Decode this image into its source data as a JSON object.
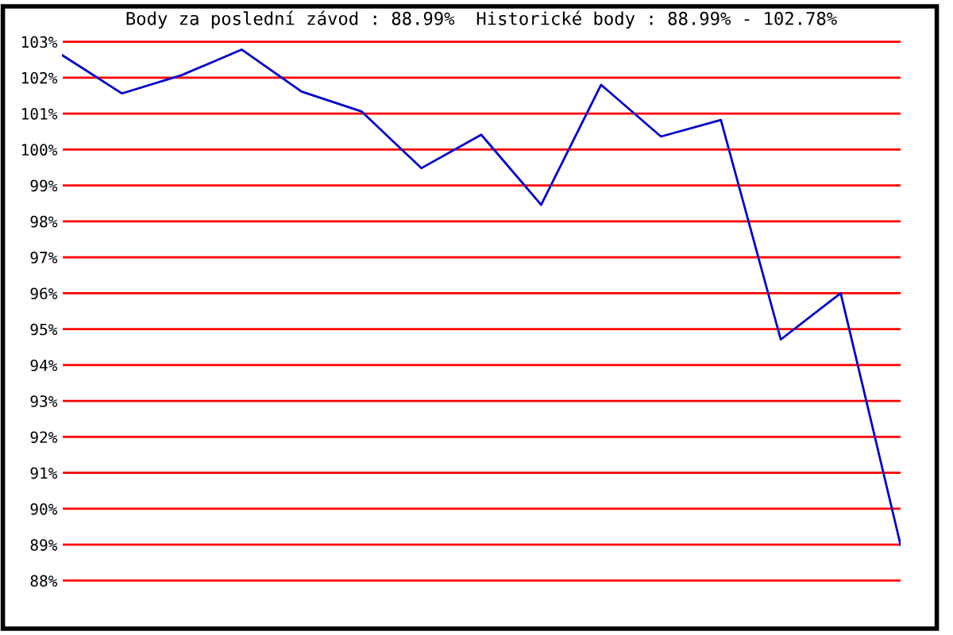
{
  "chart_data": {
    "type": "line",
    "title": "Body za poslední závod : 88.99%  Historické body : 88.99% - 102.78%",
    "categories": [
      null,
      null,
      null,
      null,
      null,
      null,
      null,
      null,
      null,
      null,
      null,
      null,
      null,
      null,
      null
    ],
    "series": [
      {
        "color": "#0000cc",
        "values": [
          102.63,
          101.56,
          102.07,
          102.78,
          101.61,
          101.06,
          99.48,
          100.41,
          98.46,
          101.8,
          100.36,
          100.82,
          94.71,
          96.0,
          88.99
        ]
      }
    ],
    "ylim": [
      87.9,
      103.1
    ],
    "yticks": [
      {
        "value": 88,
        "label": "88%"
      },
      {
        "value": 89,
        "label": "89%"
      },
      {
        "value": 90,
        "label": "90%"
      },
      {
        "value": 91,
        "label": "91%"
      },
      {
        "value": 92,
        "label": "92%"
      },
      {
        "value": 93,
        "label": "93%"
      },
      {
        "value": 94,
        "label": "94%"
      },
      {
        "value": 95,
        "label": "95%"
      },
      {
        "value": 96,
        "label": "96%"
      },
      {
        "value": 97,
        "label": "97%"
      },
      {
        "value": 98,
        "label": "98%"
      },
      {
        "value": 99,
        "label": "99%"
      },
      {
        "value": 100,
        "label": "100%"
      },
      {
        "value": 101,
        "label": "101%"
      },
      {
        "value": 102,
        "label": "102%"
      },
      {
        "value": 103,
        "label": "103%"
      }
    ],
    "grid": "y",
    "tick_labels": "y",
    "marker": "none",
    "line_style": "solid"
  }
}
